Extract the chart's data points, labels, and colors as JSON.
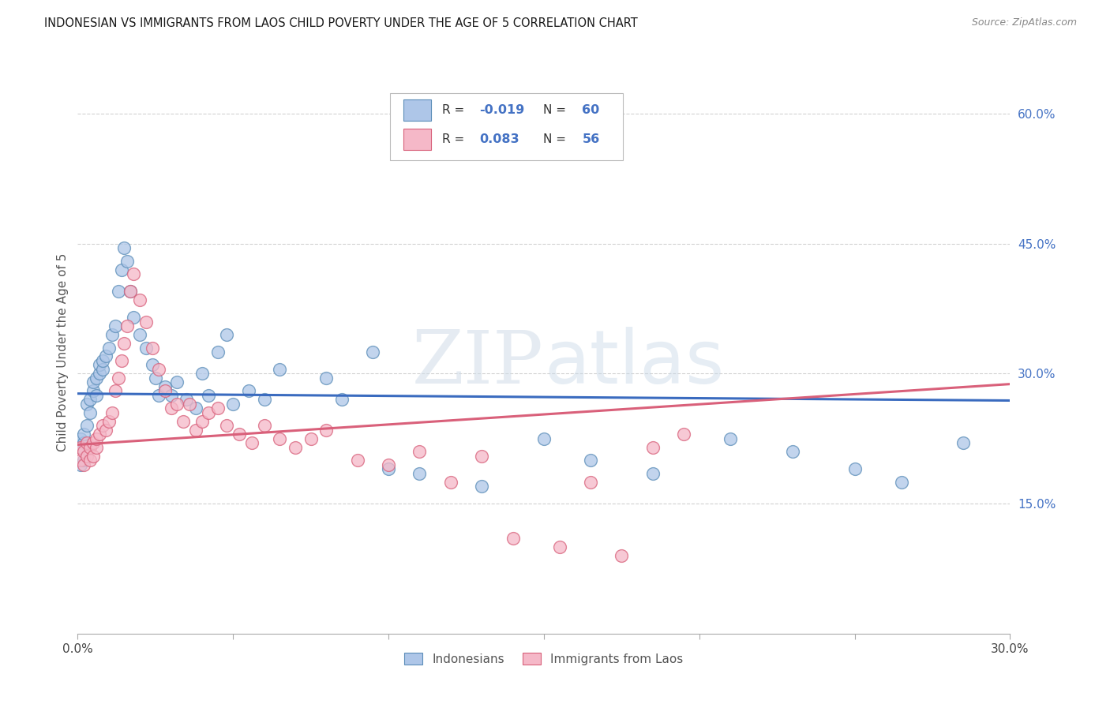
{
  "title": "INDONESIAN VS IMMIGRANTS FROM LAOS CHILD POVERTY UNDER THE AGE OF 5 CORRELATION CHART",
  "source": "Source: ZipAtlas.com",
  "ylabel": "Child Poverty Under the Age of 5",
  "xlim": [
    0,
    0.3
  ],
  "ylim": [
    0,
    0.65
  ],
  "xtick_positions": [
    0.0,
    0.05,
    0.1,
    0.15,
    0.2,
    0.25,
    0.3
  ],
  "xtick_labels": [
    "0.0%",
    "",
    "",
    "",
    "",
    "",
    "30.0%"
  ],
  "ytick_positions": [
    0.15,
    0.3,
    0.45,
    0.6
  ],
  "ytick_labels": [
    "15.0%",
    "30.0%",
    "45.0%",
    "60.0%"
  ],
  "color_indonesian_fill": "#aec6e8",
  "color_indonesian_edge": "#5b8db8",
  "color_laos_fill": "#f5b8c8",
  "color_laos_edge": "#d8607a",
  "color_trend_blue": "#3a6bbf",
  "color_trend_pink": "#d9607a",
  "watermark_zip": "ZIP",
  "watermark_atlas": "atlas",
  "indonesian_x": [
    0.001,
    0.001,
    0.001,
    0.002,
    0.002,
    0.002,
    0.003,
    0.003,
    0.004,
    0.004,
    0.005,
    0.005,
    0.006,
    0.006,
    0.007,
    0.007,
    0.008,
    0.008,
    0.009,
    0.01,
    0.011,
    0.012,
    0.013,
    0.014,
    0.015,
    0.016,
    0.017,
    0.018,
    0.02,
    0.022,
    0.024,
    0.025,
    0.026,
    0.028,
    0.03,
    0.032,
    0.035,
    0.038,
    0.04,
    0.042,
    0.045,
    0.048,
    0.05,
    0.055,
    0.06,
    0.065,
    0.08,
    0.085,
    0.095,
    0.1,
    0.11,
    0.13,
    0.15,
    0.165,
    0.185,
    0.21,
    0.23,
    0.25,
    0.265,
    0.285
  ],
  "indonesian_y": [
    0.195,
    0.215,
    0.225,
    0.2,
    0.22,
    0.23,
    0.24,
    0.265,
    0.255,
    0.27,
    0.28,
    0.29,
    0.275,
    0.295,
    0.3,
    0.31,
    0.305,
    0.315,
    0.32,
    0.33,
    0.345,
    0.355,
    0.395,
    0.42,
    0.445,
    0.43,
    0.395,
    0.365,
    0.345,
    0.33,
    0.31,
    0.295,
    0.275,
    0.285,
    0.275,
    0.29,
    0.27,
    0.26,
    0.3,
    0.275,
    0.325,
    0.345,
    0.265,
    0.28,
    0.27,
    0.305,
    0.295,
    0.27,
    0.325,
    0.19,
    0.185,
    0.17,
    0.225,
    0.2,
    0.185,
    0.225,
    0.21,
    0.19,
    0.175,
    0.22
  ],
  "laos_x": [
    0.001,
    0.001,
    0.002,
    0.002,
    0.003,
    0.003,
    0.004,
    0.004,
    0.005,
    0.005,
    0.006,
    0.006,
    0.007,
    0.008,
    0.009,
    0.01,
    0.011,
    0.012,
    0.013,
    0.014,
    0.015,
    0.016,
    0.017,
    0.018,
    0.02,
    0.022,
    0.024,
    0.026,
    0.028,
    0.03,
    0.032,
    0.034,
    0.036,
    0.038,
    0.04,
    0.042,
    0.045,
    0.048,
    0.052,
    0.056,
    0.06,
    0.065,
    0.07,
    0.075,
    0.08,
    0.09,
    0.1,
    0.11,
    0.12,
    0.13,
    0.14,
    0.155,
    0.165,
    0.175,
    0.185,
    0.195
  ],
  "laos_y": [
    0.2,
    0.215,
    0.195,
    0.21,
    0.205,
    0.22,
    0.2,
    0.215,
    0.205,
    0.22,
    0.215,
    0.225,
    0.23,
    0.24,
    0.235,
    0.245,
    0.255,
    0.28,
    0.295,
    0.315,
    0.335,
    0.355,
    0.395,
    0.415,
    0.385,
    0.36,
    0.33,
    0.305,
    0.28,
    0.26,
    0.265,
    0.245,
    0.265,
    0.235,
    0.245,
    0.255,
    0.26,
    0.24,
    0.23,
    0.22,
    0.24,
    0.225,
    0.215,
    0.225,
    0.235,
    0.2,
    0.195,
    0.21,
    0.175,
    0.205,
    0.11,
    0.1,
    0.175,
    0.09,
    0.215,
    0.23
  ],
  "trend_blue_x0": 0.0,
  "trend_blue_y0": 0.277,
  "trend_blue_x1": 0.3,
  "trend_blue_y1": 0.269,
  "trend_pink_x0": 0.0,
  "trend_pink_y0": 0.218,
  "trend_pink_x1": 0.3,
  "trend_pink_y1": 0.288
}
